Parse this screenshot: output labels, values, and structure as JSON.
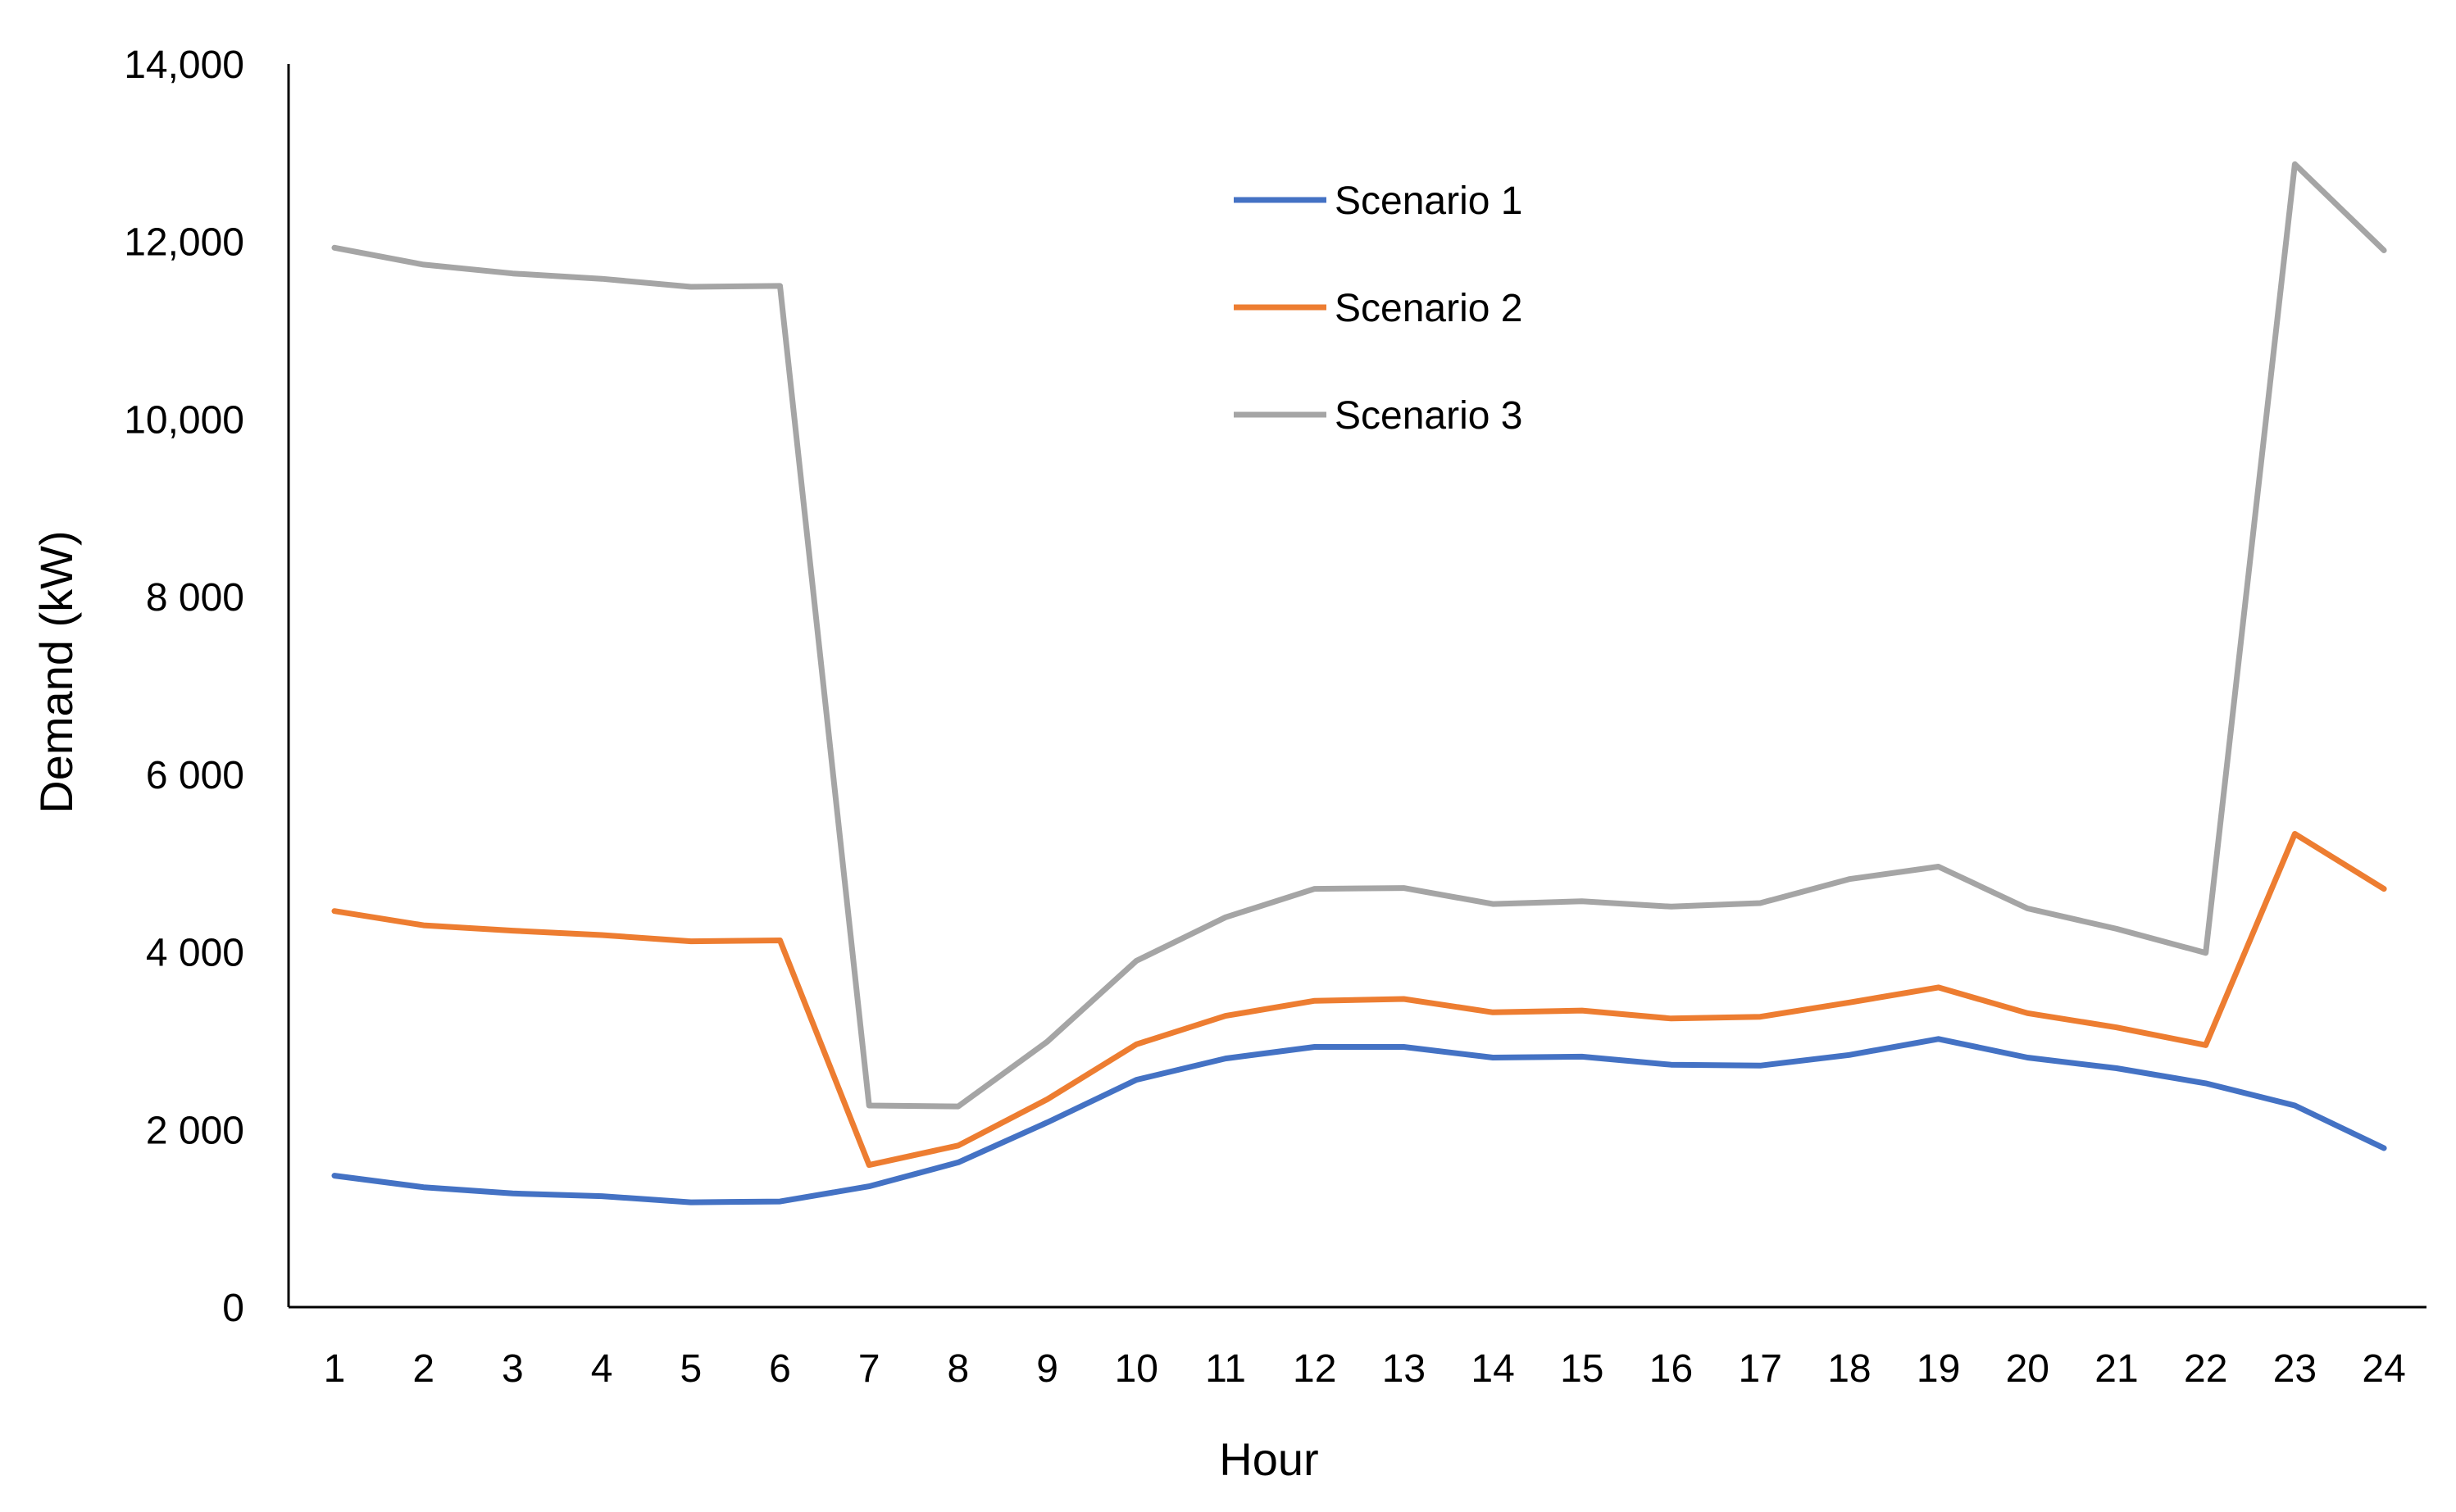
{
  "chart_data": {
    "type": "line",
    "title": "",
    "xlabel": "Hour",
    "ylabel": "Demand (kW)",
    "x": [
      1,
      2,
      3,
      4,
      5,
      6,
      7,
      8,
      9,
      10,
      11,
      12,
      13,
      14,
      15,
      16,
      17,
      18,
      19,
      20,
      21,
      22,
      23,
      24
    ],
    "ylim": [
      0,
      14000
    ],
    "y_ticks": [
      0,
      2000,
      4000,
      6000,
      8000,
      10000,
      12000,
      14000
    ],
    "y_tick_labels": [
      "0",
      "2 000",
      "4 000",
      "6 000",
      "8 000",
      "10,000",
      "12,000",
      "14,000"
    ],
    "grid": false,
    "legend_position": "top-center",
    "series": [
      {
        "name": "Scenario 1",
        "color": "#4472C4",
        "values": [
          1480,
          1350,
          1280,
          1250,
          1180,
          1190,
          1360,
          1630,
          2080,
          2560,
          2800,
          2930,
          2930,
          2810,
          2820,
          2730,
          2720,
          2840,
          3020,
          2810,
          2690,
          2520,
          2270,
          1790
        ]
      },
      {
        "name": "Scenario 2",
        "color": "#ED7D31",
        "values": [
          4460,
          4300,
          4240,
          4190,
          4120,
          4130,
          1600,
          1820,
          2340,
          2960,
          3280,
          3450,
          3470,
          3320,
          3340,
          3250,
          3270,
          3430,
          3600,
          3310,
          3150,
          2950,
          5330,
          4710
        ]
      },
      {
        "name": "Scenario 3",
        "color": "#A5A5A5",
        "values": [
          11930,
          11740,
          11640,
          11580,
          11490,
          11500,
          2270,
          2260,
          2990,
          3900,
          4390,
          4710,
          4720,
          4540,
          4570,
          4510,
          4550,
          4820,
          4960,
          4490,
          4260,
          3990,
          12870,
          11900
        ]
      }
    ]
  }
}
